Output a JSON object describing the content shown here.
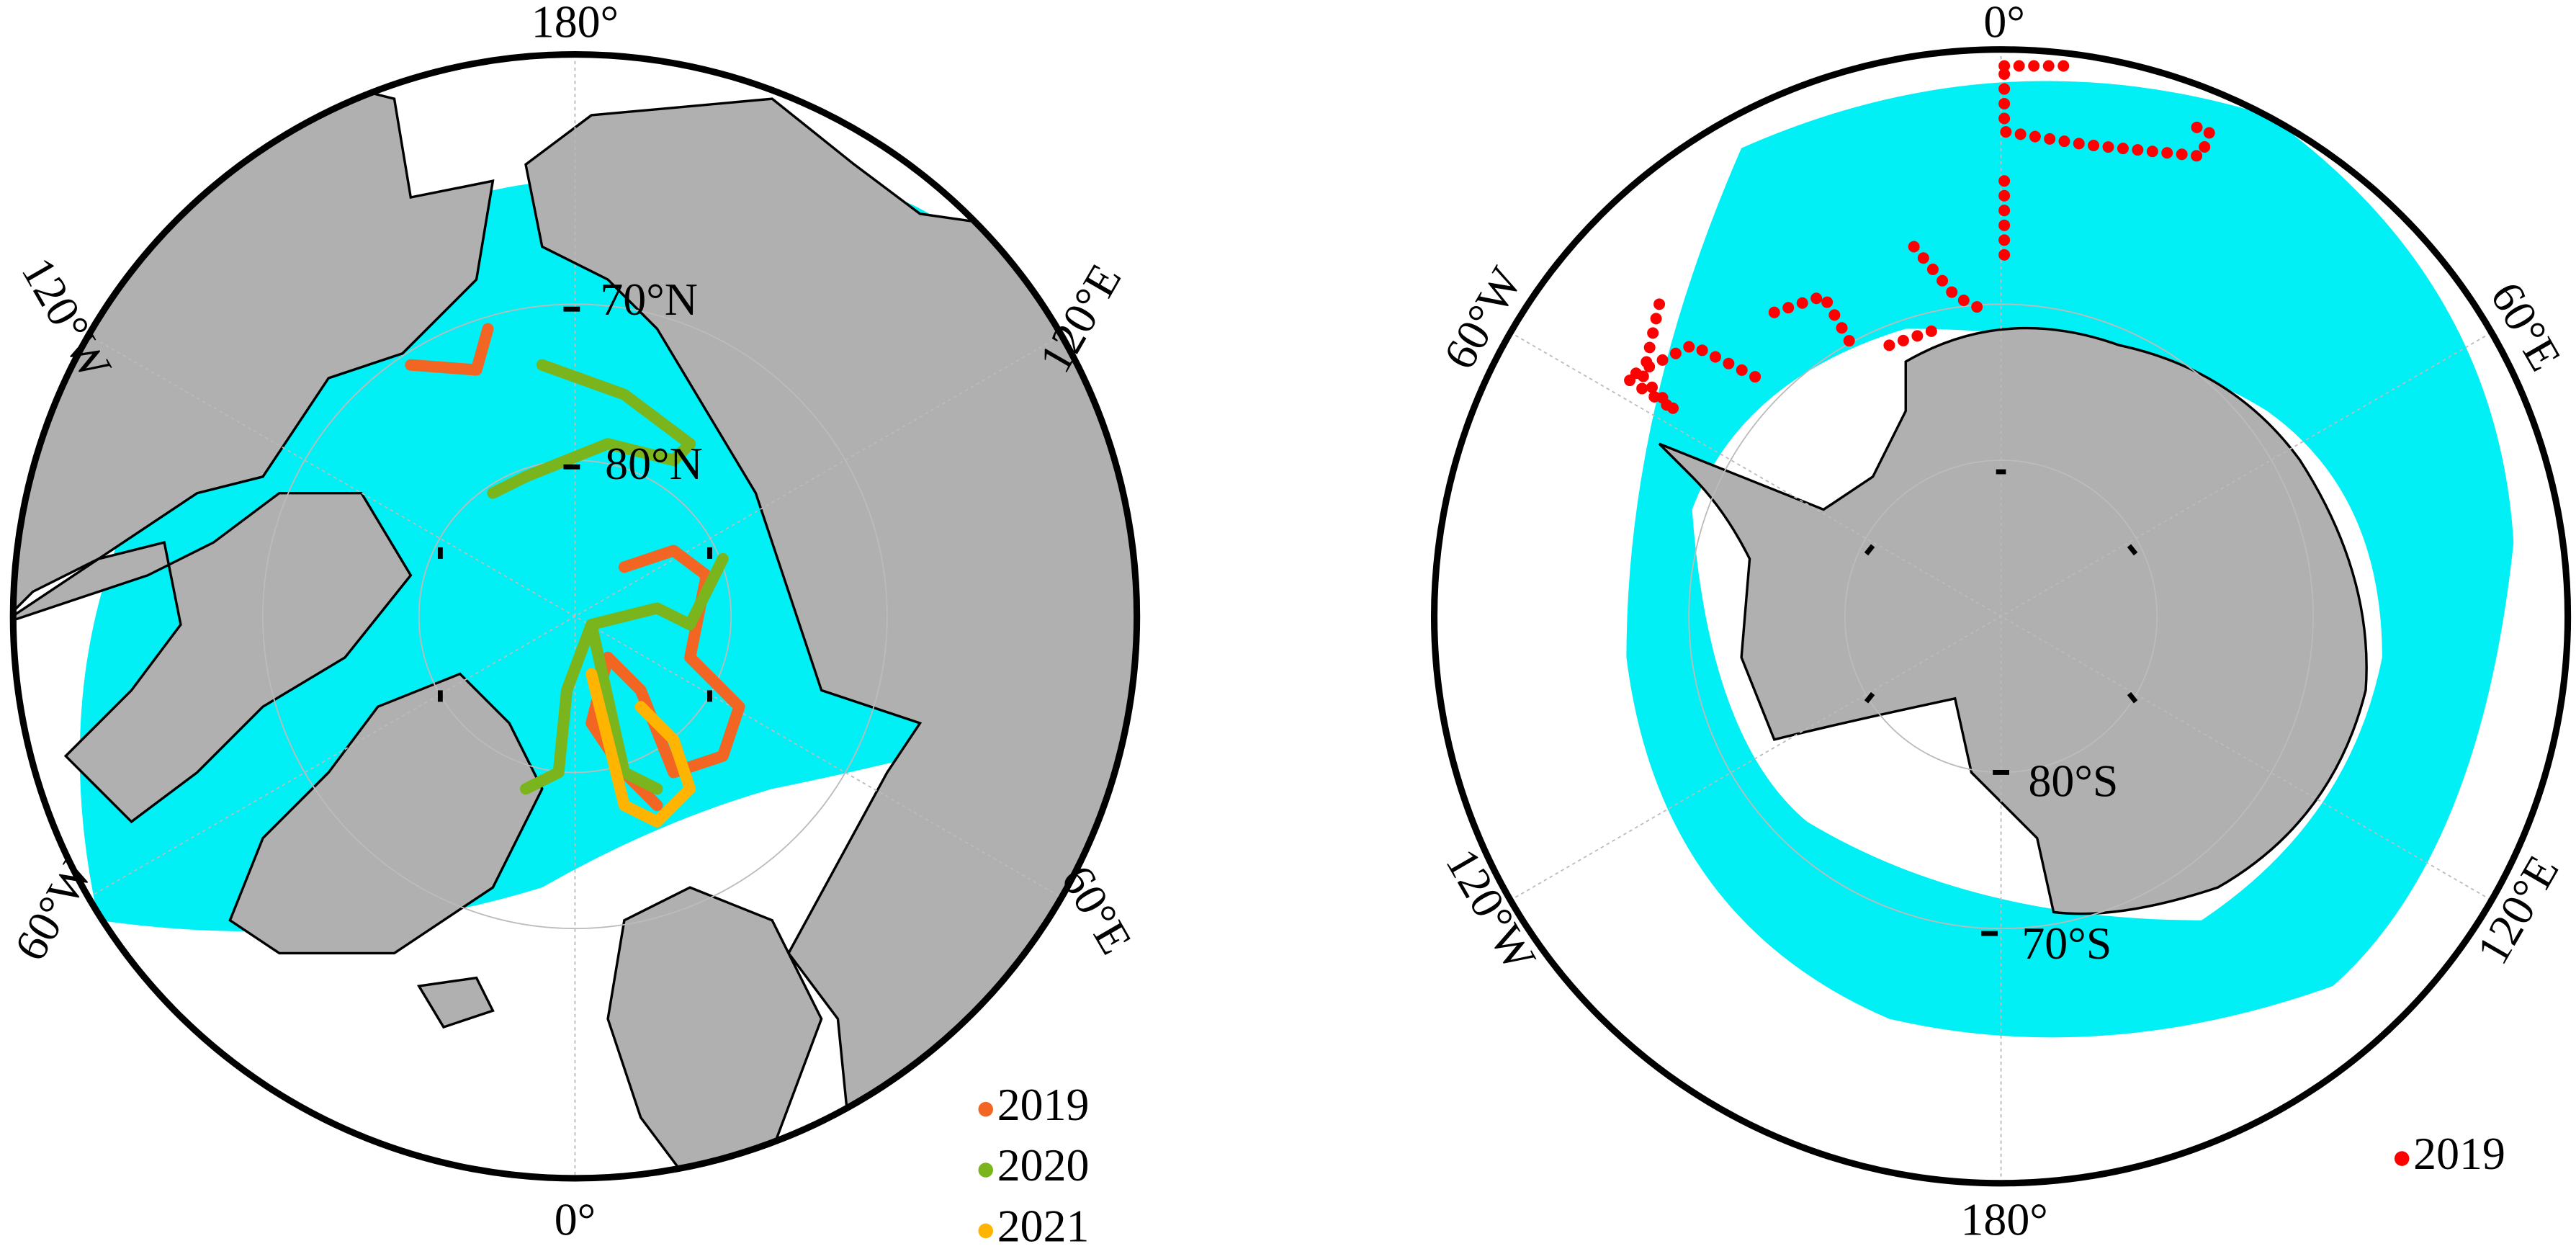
{
  "maps": [
    {
      "longitude_labels": [
        "180°",
        "120°E",
        "60°E",
        "0°",
        "60°W",
        "120°W"
      ],
      "latitude_labels": [
        "70°N",
        "80°N"
      ],
      "legend": [
        {
          "label": "2019",
          "color": "#f26522"
        },
        {
          "label": "2020",
          "color": "#7ab51d"
        },
        {
          "label": "2021",
          "color": "#ffb400"
        }
      ]
    },
    {
      "longitude_labels": [
        "0°",
        "60°E",
        "120°E",
        "180°",
        "120°W",
        "60°W"
      ],
      "latitude_labels": [
        "80°S",
        "70°S"
      ],
      "legend": [
        {
          "label": "2019",
          "color": "#ff0000"
        }
      ]
    }
  ]
}
